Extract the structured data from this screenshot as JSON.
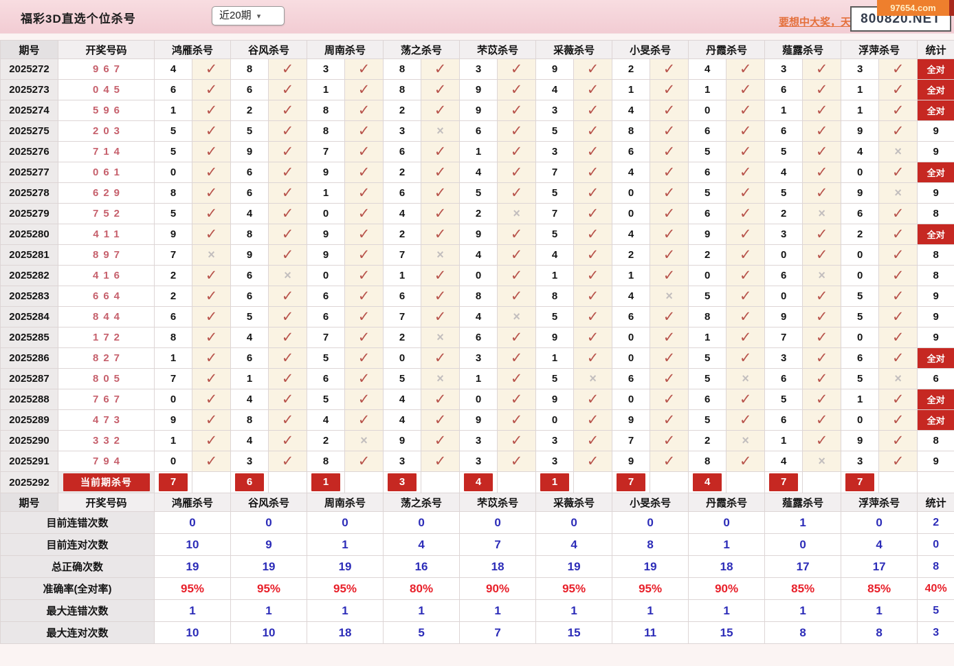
{
  "header": {
    "title": "福彩3D直选个位杀号",
    "range_select": {
      "value": "近20期"
    },
    "promo_link": "要想中大奖，天",
    "site_box": "800820.NET",
    "corner_badge": "97654.com"
  },
  "icons": {
    "dropdown_arrow": "▾",
    "check": "✓",
    "cross": "×"
  },
  "colors": {
    "titlebar_pink": "#f4d3d8",
    "accent_red": "#c62822",
    "check_red": "#b8544c",
    "cross_gray": "#c2bebe",
    "draw_number_red": "#c6606c",
    "stat_blue": "#2c2cb8",
    "stat_percent_red": "#e8202a",
    "badge_orange": "#ee7f2d"
  },
  "table": {
    "columns": [
      "期号",
      "开奖号码",
      "鸿雁杀号",
      "谷风杀号",
      "周南杀号",
      "荡之杀号",
      "芣苡杀号",
      "采薇杀号",
      "小旻杀号",
      "丹霞杀号",
      "薤露杀号",
      "浮萍杀号",
      "统计"
    ],
    "all_correct_label": "全对",
    "rows": [
      {
        "period": "2025272",
        "draw": "967",
        "nums": [
          "4",
          "8",
          "3",
          "8",
          "3",
          "9",
          "2",
          "4",
          "3",
          "3"
        ],
        "oks": [
          1,
          1,
          1,
          1,
          1,
          1,
          1,
          1,
          1,
          1
        ],
        "stat": "全对"
      },
      {
        "period": "2025273",
        "draw": "045",
        "nums": [
          "6",
          "6",
          "1",
          "8",
          "9",
          "4",
          "1",
          "1",
          "6",
          "1"
        ],
        "oks": [
          1,
          1,
          1,
          1,
          1,
          1,
          1,
          1,
          1,
          1
        ],
        "stat": "全对"
      },
      {
        "period": "2025274",
        "draw": "596",
        "nums": [
          "1",
          "2",
          "8",
          "2",
          "9",
          "3",
          "4",
          "0",
          "1",
          "1"
        ],
        "oks": [
          1,
          1,
          1,
          1,
          1,
          1,
          1,
          1,
          1,
          1
        ],
        "stat": "全对"
      },
      {
        "period": "2025275",
        "draw": "203",
        "nums": [
          "5",
          "5",
          "8",
          "3",
          "6",
          "5",
          "8",
          "6",
          "6",
          "9"
        ],
        "oks": [
          1,
          1,
          1,
          0,
          1,
          1,
          1,
          1,
          1,
          1
        ],
        "stat": "9"
      },
      {
        "period": "2025276",
        "draw": "714",
        "nums": [
          "5",
          "9",
          "7",
          "6",
          "1",
          "3",
          "6",
          "5",
          "5",
          "4"
        ],
        "oks": [
          1,
          1,
          1,
          1,
          1,
          1,
          1,
          1,
          1,
          0
        ],
        "stat": "9"
      },
      {
        "period": "2025277",
        "draw": "061",
        "nums": [
          "0",
          "6",
          "9",
          "2",
          "4",
          "7",
          "4",
          "6",
          "4",
          "0"
        ],
        "oks": [
          1,
          1,
          1,
          1,
          1,
          1,
          1,
          1,
          1,
          1
        ],
        "stat": "全对"
      },
      {
        "period": "2025278",
        "draw": "629",
        "nums": [
          "8",
          "6",
          "1",
          "6",
          "5",
          "5",
          "0",
          "5",
          "5",
          "9"
        ],
        "oks": [
          1,
          1,
          1,
          1,
          1,
          1,
          1,
          1,
          1,
          0
        ],
        "stat": "9"
      },
      {
        "period": "2025279",
        "draw": "752",
        "nums": [
          "5",
          "4",
          "0",
          "4",
          "2",
          "7",
          "0",
          "6",
          "2",
          "6"
        ],
        "oks": [
          1,
          1,
          1,
          1,
          0,
          1,
          1,
          1,
          0,
          1
        ],
        "stat": "8"
      },
      {
        "period": "2025280",
        "draw": "411",
        "nums": [
          "9",
          "8",
          "9",
          "2",
          "9",
          "5",
          "4",
          "9",
          "3",
          "2"
        ],
        "oks": [
          1,
          1,
          1,
          1,
          1,
          1,
          1,
          1,
          1,
          1
        ],
        "stat": "全对"
      },
      {
        "period": "2025281",
        "draw": "897",
        "nums": [
          "7",
          "9",
          "9",
          "7",
          "4",
          "4",
          "2",
          "2",
          "0",
          "0"
        ],
        "oks": [
          0,
          1,
          1,
          0,
          1,
          1,
          1,
          1,
          1,
          1
        ],
        "stat": "8"
      },
      {
        "period": "2025282",
        "draw": "416",
        "nums": [
          "2",
          "6",
          "0",
          "1",
          "0",
          "1",
          "1",
          "0",
          "6",
          "0"
        ],
        "oks": [
          1,
          0,
          1,
          1,
          1,
          1,
          1,
          1,
          0,
          1
        ],
        "stat": "8"
      },
      {
        "period": "2025283",
        "draw": "664",
        "nums": [
          "2",
          "6",
          "6",
          "6",
          "8",
          "8",
          "4",
          "5",
          "0",
          "5"
        ],
        "oks": [
          1,
          1,
          1,
          1,
          1,
          1,
          0,
          1,
          1,
          1
        ],
        "stat": "9"
      },
      {
        "period": "2025284",
        "draw": "844",
        "nums": [
          "6",
          "5",
          "6",
          "7",
          "4",
          "5",
          "6",
          "8",
          "9",
          "5"
        ],
        "oks": [
          1,
          1,
          1,
          1,
          0,
          1,
          1,
          1,
          1,
          1
        ],
        "stat": "9"
      },
      {
        "period": "2025285",
        "draw": "172",
        "nums": [
          "8",
          "4",
          "7",
          "2",
          "6",
          "9",
          "0",
          "1",
          "7",
          "0"
        ],
        "oks": [
          1,
          1,
          1,
          0,
          1,
          1,
          1,
          1,
          1,
          1
        ],
        "stat": "9"
      },
      {
        "period": "2025286",
        "draw": "827",
        "nums": [
          "1",
          "6",
          "5",
          "0",
          "3",
          "1",
          "0",
          "5",
          "3",
          "6"
        ],
        "oks": [
          1,
          1,
          1,
          1,
          1,
          1,
          1,
          1,
          1,
          1
        ],
        "stat": "全对"
      },
      {
        "period": "2025287",
        "draw": "805",
        "nums": [
          "7",
          "1",
          "6",
          "5",
          "1",
          "5",
          "6",
          "5",
          "6",
          "5"
        ],
        "oks": [
          1,
          1,
          1,
          0,
          1,
          0,
          1,
          0,
          1,
          0
        ],
        "stat": "6"
      },
      {
        "period": "2025288",
        "draw": "767",
        "nums": [
          "0",
          "4",
          "5",
          "4",
          "0",
          "9",
          "0",
          "6",
          "5",
          "1"
        ],
        "oks": [
          1,
          1,
          1,
          1,
          1,
          1,
          1,
          1,
          1,
          1
        ],
        "stat": "全对"
      },
      {
        "period": "2025289",
        "draw": "473",
        "nums": [
          "9",
          "8",
          "4",
          "4",
          "9",
          "0",
          "9",
          "5",
          "6",
          "0"
        ],
        "oks": [
          1,
          1,
          1,
          1,
          1,
          1,
          1,
          1,
          1,
          1
        ],
        "stat": "全对"
      },
      {
        "period": "2025290",
        "draw": "332",
        "nums": [
          "1",
          "4",
          "2",
          "9",
          "3",
          "3",
          "7",
          "2",
          "1",
          "9"
        ],
        "oks": [
          1,
          1,
          0,
          1,
          1,
          1,
          1,
          0,
          1,
          1
        ],
        "stat": "8"
      },
      {
        "period": "2025291",
        "draw": "794",
        "nums": [
          "0",
          "3",
          "8",
          "3",
          "3",
          "3",
          "9",
          "8",
          "4",
          "3"
        ],
        "oks": [
          1,
          1,
          1,
          1,
          1,
          1,
          1,
          1,
          0,
          1
        ],
        "stat": "9"
      }
    ],
    "current_row": {
      "period": "2025292",
      "label": "当前期杀号",
      "kills": [
        "7",
        "6",
        "1",
        "3",
        "4",
        "1",
        "7",
        "4",
        "7",
        "7"
      ],
      "stat": ""
    },
    "stats": [
      {
        "label": "目前连错次数",
        "values": [
          "0",
          "0",
          "0",
          "0",
          "0",
          "0",
          "0",
          "0",
          "1",
          "0"
        ],
        "total": "2",
        "color": "blue",
        "total_color": "blue"
      },
      {
        "label": "目前连对次数",
        "values": [
          "10",
          "9",
          "1",
          "4",
          "7",
          "4",
          "8",
          "1",
          "0",
          "4"
        ],
        "total": "0",
        "color": "blue",
        "total_color": "blue"
      },
      {
        "label": "总正确次数",
        "values": [
          "19",
          "19",
          "19",
          "16",
          "18",
          "19",
          "19",
          "18",
          "17",
          "17"
        ],
        "total": "8",
        "color": "blue",
        "total_color": "blue"
      },
      {
        "label": "准确率(全对率)",
        "values": [
          "95%",
          "95%",
          "95%",
          "80%",
          "90%",
          "95%",
          "95%",
          "90%",
          "85%",
          "85%"
        ],
        "total": "40%",
        "color": "red",
        "total_color": "red"
      },
      {
        "label": "最大连错次数",
        "values": [
          "1",
          "1",
          "1",
          "1",
          "1",
          "1",
          "1",
          "1",
          "1",
          "1"
        ],
        "total": "5",
        "color": "blue",
        "total_color": "blue"
      },
      {
        "label": "最大连对次数",
        "values": [
          "10",
          "10",
          "18",
          "5",
          "7",
          "15",
          "11",
          "15",
          "8",
          "8"
        ],
        "total": "3",
        "color": "blue",
        "total_color": "blue"
      }
    ]
  }
}
